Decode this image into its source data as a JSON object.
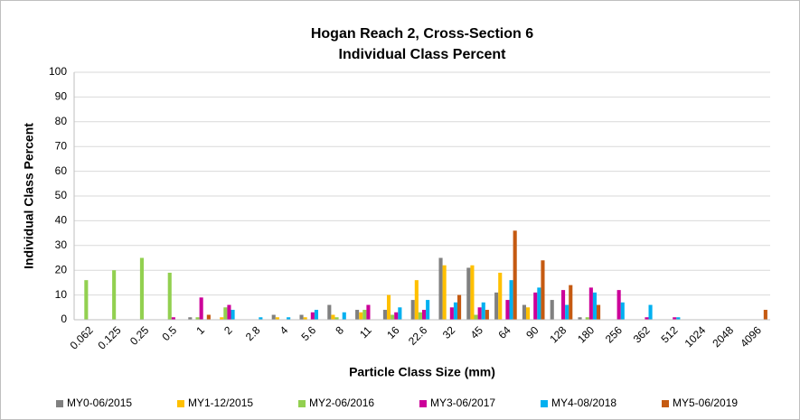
{
  "chart_data": {
    "type": "bar",
    "title": "Hogan Reach 2, Cross-Section 6",
    "subtitle": "Individual Class Percent",
    "x_label": "Particle Class Size (mm)",
    "y_label": "Individual Class Percent",
    "categories": [
      "0.062",
      "0.125",
      "0.25",
      "0.5",
      "1",
      "2",
      "2.8",
      "4",
      "5.6",
      "8",
      "11",
      "16",
      "22.6",
      "32",
      "45",
      "64",
      "90",
      "128",
      "180",
      "256",
      "362",
      "512",
      "1024",
      "2048",
      "4096"
    ],
    "series": [
      {
        "name": "MY0-06/2015",
        "color": "#808080",
        "values": [
          0,
          0,
          0,
          0,
          1,
          0,
          0,
          2,
          2,
          6,
          4,
          4,
          8,
          25,
          21,
          11,
          6,
          8,
          1,
          0,
          0,
          0,
          0,
          0,
          0
        ]
      },
      {
        "name": "MY1-12/2015",
        "color": "#ffc000",
        "values": [
          0,
          0,
          0,
          0,
          0,
          1,
          0,
          1,
          1,
          2,
          3,
          10,
          16,
          22,
          22,
          19,
          5,
          0,
          0,
          0,
          0,
          0,
          0,
          0,
          0
        ]
      },
      {
        "name": "MY2-06/2016",
        "color": "#92d050",
        "values": [
          16,
          20,
          25,
          19,
          1,
          5,
          0,
          0,
          0,
          1,
          4,
          2,
          3,
          0,
          2,
          0,
          0,
          0,
          1,
          0,
          0,
          0,
          0,
          0,
          0
        ]
      },
      {
        "name": "MY3-06/2017",
        "color": "#cc0099",
        "values": [
          0,
          0,
          0,
          1,
          9,
          6,
          0,
          0,
          3,
          0,
          6,
          3,
          4,
          5,
          5,
          8,
          11,
          12,
          13,
          12,
          1,
          1,
          0,
          0,
          0
        ]
      },
      {
        "name": "MY4-08/2018",
        "color": "#00b0f0",
        "values": [
          0,
          0,
          0,
          0,
          0,
          4,
          1,
          1,
          4,
          3,
          0,
          5,
          8,
          7,
          7,
          16,
          13,
          6,
          11,
          7,
          6,
          1,
          0,
          0,
          0
        ]
      },
      {
        "name": "MY5-06/2019",
        "color": "#c55a11",
        "values": [
          0,
          0,
          0,
          0,
          2,
          0,
          0,
          0,
          0,
          0,
          0,
          0,
          0,
          10,
          4,
          36,
          24,
          14,
          6,
          0,
          0,
          0,
          0,
          0,
          4
        ]
      }
    ],
    "ylim": [
      0,
      100
    ],
    "yticks": [
      0,
      10,
      20,
      30,
      40,
      50,
      60,
      70,
      80,
      90,
      100
    ],
    "grid": true,
    "legend": "bottom"
  }
}
